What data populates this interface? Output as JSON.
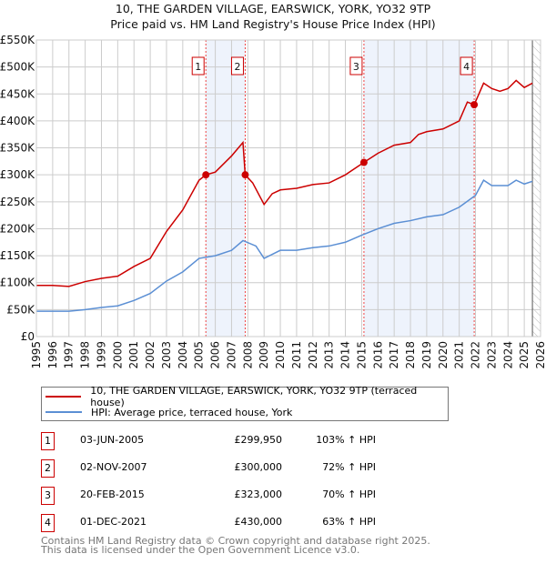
{
  "chart_data": {
    "type": "line",
    "title": "10, THE GARDEN VILLAGE, EARSWICK, YORK, YO32 9TP",
    "subtitle": "Price paid vs. HM Land Registry's House Price Index (HPI)",
    "xlim": [
      1995,
      2026
    ],
    "ylim": [
      0,
      550000
    ],
    "y_ticks": [
      {
        "v": 0,
        "l": "£0"
      },
      {
        "v": 50000,
        "l": "£50K"
      },
      {
        "v": 100000,
        "l": "£100K"
      },
      {
        "v": 150000,
        "l": "£150K"
      },
      {
        "v": 200000,
        "l": "£200K"
      },
      {
        "v": 250000,
        "l": "£250K"
      },
      {
        "v": 300000,
        "l": "£300K"
      },
      {
        "v": 350000,
        "l": "£350K"
      },
      {
        "v": 400000,
        "l": "£400K"
      },
      {
        "v": 450000,
        "l": "£450K"
      },
      {
        "v": 500000,
        "l": "£500K"
      },
      {
        "v": 550000,
        "l": "£550K"
      }
    ],
    "x_ticks": [
      "1995",
      "1996",
      "1997",
      "1998",
      "1999",
      "2000",
      "2001",
      "2002",
      "2003",
      "2004",
      "2005",
      "2006",
      "2007",
      "2008",
      "2009",
      "2010",
      "2011",
      "2012",
      "2013",
      "2014",
      "2015",
      "2016",
      "2017",
      "2018",
      "2019",
      "2020",
      "2021",
      "2022",
      "2023",
      "2024",
      "2025",
      "2026"
    ],
    "series": [
      {
        "name": "10, THE GARDEN VILLAGE, EARSWICK, YORK, YO32 9TP (terraced house)",
        "color": "#cc0000",
        "x": [
          1995,
          1996,
          1997,
          1998,
          1999,
          2000,
          2001,
          2002,
          2003,
          2004,
          2005,
          2005.42,
          2006,
          2007,
          2007.7,
          2007.84,
          2008.3,
          2009,
          2009.5,
          2010,
          2011,
          2012,
          2013,
          2014,
          2015.14,
          2016,
          2017,
          2018,
          2018.5,
          2019,
          2020,
          2021,
          2021.5,
          2021.92,
          2022.5,
          2023,
          2023.5,
          2024,
          2024.5,
          2025,
          2025.5
        ],
        "y": [
          95000,
          95000,
          93000,
          102000,
          108000,
          112000,
          130000,
          145000,
          195000,
          235000,
          290000,
          300000,
          305000,
          335000,
          360000,
          300000,
          285000,
          245000,
          265000,
          272000,
          275000,
          282000,
          285000,
          300000,
          323000,
          340000,
          355000,
          360000,
          375000,
          380000,
          385000,
          400000,
          435000,
          430000,
          470000,
          460000,
          455000,
          460000,
          475000,
          462000,
          470000
        ]
      },
      {
        "name": "HPI: Average price, terraced house, York",
        "color": "#5b8fd4",
        "x": [
          1995,
          1996,
          1997,
          1998,
          1999,
          2000,
          2001,
          2002,
          2003,
          2004,
          2005,
          2006,
          2007,
          2007.7,
          2008.5,
          2009,
          2010,
          2011,
          2012,
          2013,
          2014,
          2015,
          2016,
          2017,
          2018,
          2019,
          2020,
          2021,
          2022,
          2022.5,
          2023,
          2024,
          2024.5,
          2025,
          2025.5
        ],
        "y": [
          47000,
          47000,
          47000,
          50000,
          54000,
          57000,
          67000,
          80000,
          103000,
          120000,
          145000,
          150000,
          160000,
          178000,
          168000,
          145000,
          160000,
          160000,
          165000,
          168000,
          175000,
          188000,
          200000,
          210000,
          215000,
          222000,
          226000,
          240000,
          262000,
          290000,
          280000,
          280000,
          290000,
          283000,
          288000
        ]
      }
    ],
    "sales": [
      {
        "n": "1",
        "x": 2005.42,
        "y": 299950
      },
      {
        "n": "2",
        "x": 2007.84,
        "y": 300000
      },
      {
        "n": "3",
        "x": 2015.14,
        "y": 323000
      },
      {
        "n": "4",
        "x": 2021.92,
        "y": 430000
      }
    ],
    "shaded": [
      [
        2005.42,
        2007.84
      ],
      [
        2015.14,
        2021.92
      ]
    ],
    "hatched_from": 2025.5
  },
  "legend": [
    "10, THE GARDEN VILLAGE, EARSWICK, YORK, YO32 9TP (terraced house)",
    "HPI: Average price, terraced house, York"
  ],
  "table": [
    {
      "n": "1",
      "date": "03-JUN-2005",
      "price": "£299,950",
      "hpi": "103% ↑ HPI"
    },
    {
      "n": "2",
      "date": "02-NOV-2007",
      "price": "£300,000",
      "hpi": "72% ↑ HPI"
    },
    {
      "n": "3",
      "date": "20-FEB-2015",
      "price": "£323,000",
      "hpi": "70% ↑ HPI"
    },
    {
      "n": "4",
      "date": "01-DEC-2021",
      "price": "£430,000",
      "hpi": "63% ↑ HPI"
    }
  ],
  "footer": [
    "Contains HM Land Registry data © Crown copyright and database right 2025.",
    "This data is licensed under the Open Government Licence v3.0."
  ]
}
